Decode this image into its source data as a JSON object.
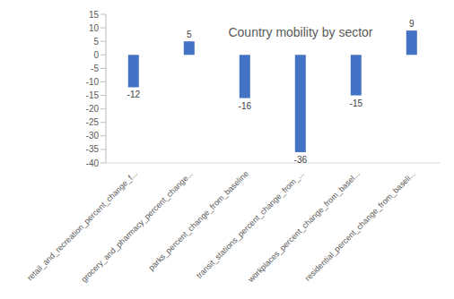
{
  "chart_data": {
    "type": "bar",
    "title": "Country mobility by sector",
    "categories": [
      "retail_and_recreation_percent_change_f...",
      "grocery_and_pharmacy_percent_change...",
      "parks_percent_change_from_baseline",
      "transit_stations_percent_change_from_...",
      "workplaces_percent_change_from_basel...",
      "residential_percent_change_from_baseli..."
    ],
    "values": [
      -12,
      5,
      -16,
      -36,
      -15,
      9
    ],
    "color": "#4472c4",
    "ylim": [
      -40,
      15
    ],
    "yticks": [
      -40,
      -35,
      -30,
      -25,
      -20,
      -15,
      -10,
      -5,
      0,
      5,
      10,
      15
    ],
    "grid": false,
    "data_labels": true
  }
}
